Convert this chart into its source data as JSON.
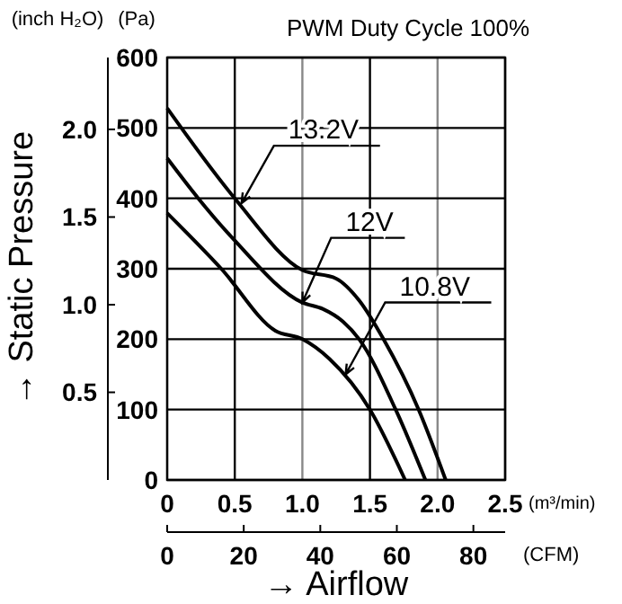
{
  "chart_data": {
    "type": "line",
    "title": "PWM Duty Cycle 100%",
    "xlabel": "(m³/min)",
    "x2label": "(CFM)",
    "ylabel": "(Pa)",
    "y2label": "(inch H₂O)",
    "annotations": [
      "→ Static Pressure",
      "→ Airflow",
      {
        "text": "13.2V",
        "x": 0.55,
        "y": 393
      },
      {
        "text": "12V",
        "x": 1.0,
        "y": 252
      },
      {
        "text": "10.8V",
        "x": 1.32,
        "y": 150
      }
    ],
    "xlim": [
      0,
      2.5
    ],
    "xticks": [
      0,
      0.5,
      {
        "value": 1,
        "label": "1.0"
      },
      1.5,
      {
        "value": 2,
        "label": "2.0"
      },
      2.5
    ],
    "x2lim": [
      0,
      88.3
    ],
    "x2ticks": [
      0,
      20,
      40,
      60,
      80
    ],
    "ylim": [
      0,
      600
    ],
    "yticks": [
      0,
      100,
      200,
      300,
      400,
      500,
      600
    ],
    "y2lim": [
      0,
      2.41
    ],
    "y2ticks": [
      {
        "value": 0.5,
        "label": "0.5"
      },
      {
        "value": 1,
        "label": "1.0"
      },
      1.5,
      {
        "value": 2,
        "label": "2.0"
      }
    ],
    "grid": true,
    "marker": "none",
    "line_style": "solid",
    "series": [
      {
        "color": "#000000",
        "x": [
          0,
          0.5,
          1.0,
          1.25,
          1.42,
          1.6,
          1.86,
          2.06
        ],
        "values": [
          528,
          400,
          298,
          286,
          255,
          200,
          100,
          0
        ]
      },
      {
        "color": "#000000",
        "x": [
          0,
          0.23,
          0.5,
          1.0,
          1.15,
          1.3,
          1.42,
          1.69,
          1.91
        ],
        "values": [
          457,
          400,
          340,
          252,
          243,
          225,
          200,
          100,
          0
        ]
      },
      {
        "color": "#000000",
        "x": [
          0,
          0.4,
          0.8,
          1.0,
          1.2,
          1.5,
          1.76
        ],
        "values": [
          379,
          300,
          212,
          200,
          172,
          100,
          0
        ]
      }
    ]
  }
}
